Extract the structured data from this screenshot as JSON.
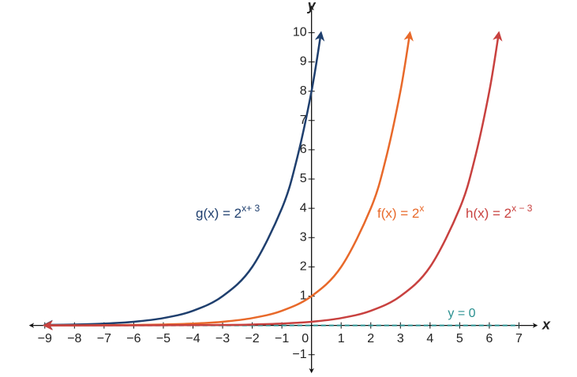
{
  "chart_data": {
    "type": "line",
    "x_label": "x",
    "y_label": "y",
    "xlim": [
      -9.5,
      7.6
    ],
    "ylim": [
      -1.6,
      10.9
    ],
    "xticks": [
      {
        "value": -9,
        "label": "−9"
      },
      {
        "value": -8,
        "label": "−8"
      },
      {
        "value": -7,
        "label": "−7"
      },
      {
        "value": -6,
        "label": "−6"
      },
      {
        "value": -5,
        "label": "−5"
      },
      {
        "value": -4,
        "label": "−4"
      },
      {
        "value": -3,
        "label": "−3"
      },
      {
        "value": -2,
        "label": "−2"
      },
      {
        "value": -1,
        "label": "−1"
      },
      0,
      1,
      2,
      3,
      4,
      5,
      6,
      7
    ],
    "yticks": [
      {
        "value": -1,
        "label": "−1"
      },
      1,
      2,
      3,
      4,
      5,
      6,
      7,
      8,
      9,
      10
    ],
    "grid": false,
    "series": [
      {
        "name": "g(x) = 2",
        "exponent": "x+ 3",
        "color": "#1f3f6e",
        "x": [
          -9,
          -8,
          -7,
          -6,
          -5,
          -4,
          -3,
          -2,
          -1,
          -0.5,
          0,
          0.32
        ],
        "values": [
          0.016,
          0.031,
          0.063,
          0.125,
          0.25,
          0.5,
          1,
          2,
          4,
          5.66,
          8,
          9.99
        ]
      },
      {
        "name": "f(x) = 2",
        "exponent": "x",
        "color": "#e8692a",
        "x": [
          -9,
          -8,
          -7,
          -6,
          -5,
          -4,
          -3,
          -2,
          -1,
          0,
          1,
          2,
          2.5,
          3,
          3.32
        ],
        "values": [
          0.002,
          0.004,
          0.008,
          0.016,
          0.031,
          0.063,
          0.125,
          0.25,
          0.5,
          1,
          2,
          4,
          5.66,
          8,
          9.99
        ]
      },
      {
        "name": "h(x) = 2",
        "exponent": "x − 3",
        "color": "#c8413f",
        "x": [
          -9,
          -6,
          -3,
          -2,
          -1,
          0,
          1,
          2,
          3,
          4,
          5,
          5.5,
          6,
          6.32
        ],
        "values": [
          0.0002,
          0.002,
          0.016,
          0.031,
          0.063,
          0.125,
          0.25,
          0.5,
          1,
          2,
          4,
          5.66,
          8,
          9.99
        ]
      }
    ],
    "asymptote": {
      "label": "y = 0",
      "y": 0,
      "color": "#2a9090"
    }
  }
}
